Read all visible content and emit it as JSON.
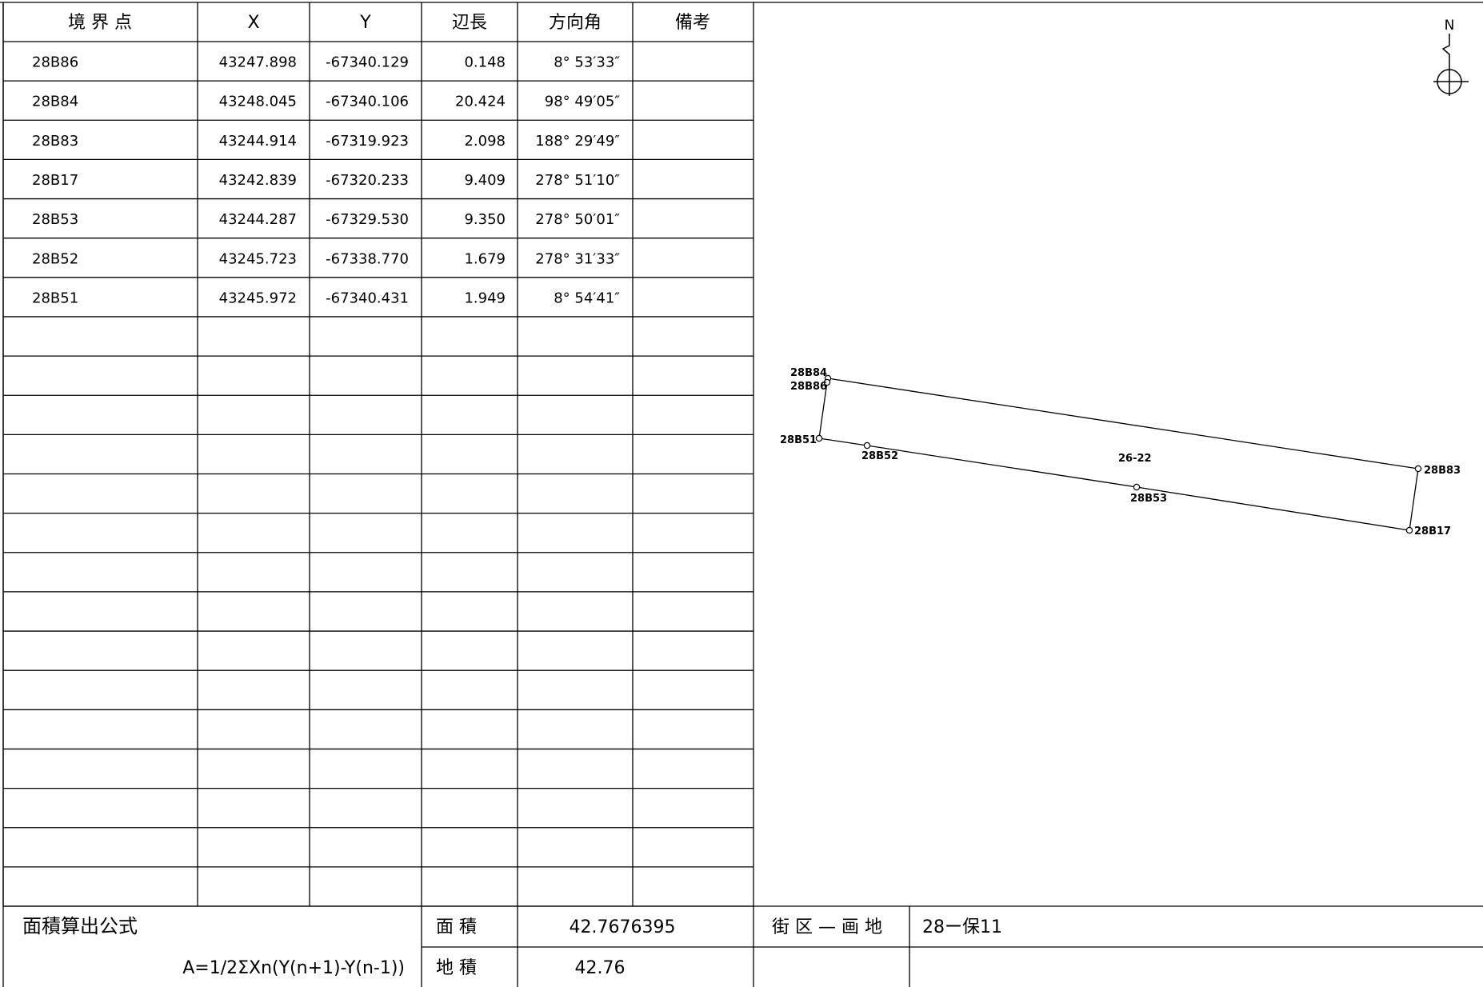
{
  "table": {
    "headers": [
      "境 界 点",
      "X",
      "Y",
      "辺長",
      "方向角",
      "備考"
    ],
    "rows": [
      [
        "28B86",
        "43247.898",
        "-67340.129",
        "0.148",
        "8° 53′33″",
        ""
      ],
      [
        "28B84",
        "43248.045",
        "-67340.106",
        "20.424",
        "98° 49′05″",
        ""
      ],
      [
        "28B83",
        "43244.914",
        "-67319.923",
        "2.098",
        "188° 29′49″",
        ""
      ],
      [
        "28B17",
        "43242.839",
        "-67320.233",
        "9.409",
        "278° 51′10″",
        ""
      ],
      [
        "28B53",
        "43244.287",
        "-67329.530",
        "9.350",
        "278° 50′01″",
        ""
      ],
      [
        "28B52",
        "43245.723",
        "-67338.770",
        "1.679",
        "278° 31′33″",
        ""
      ],
      [
        "28B51",
        "43245.972",
        "-67340.431",
        "1.949",
        "8° 54′41″",
        ""
      ]
    ],
    "empty_rows": 15
  },
  "footer": {
    "formula_title": "面積算出公式",
    "formula": "A=1/2ΣXn(Y(n+1)-Y(n-1))",
    "area_label": "面 積",
    "area_value": "42.7676395",
    "land_area_label": "地 積",
    "land_area_value": "42.76",
    "block_label": "街 区 — 画 地",
    "block_value": "28ー保11"
  },
  "plot": {
    "north_label": "N",
    "parcel_label": "26-22",
    "points": [
      "28B84",
      "28B86",
      "28B51",
      "28B52",
      "28B53",
      "28B83",
      "28B17"
    ]
  }
}
